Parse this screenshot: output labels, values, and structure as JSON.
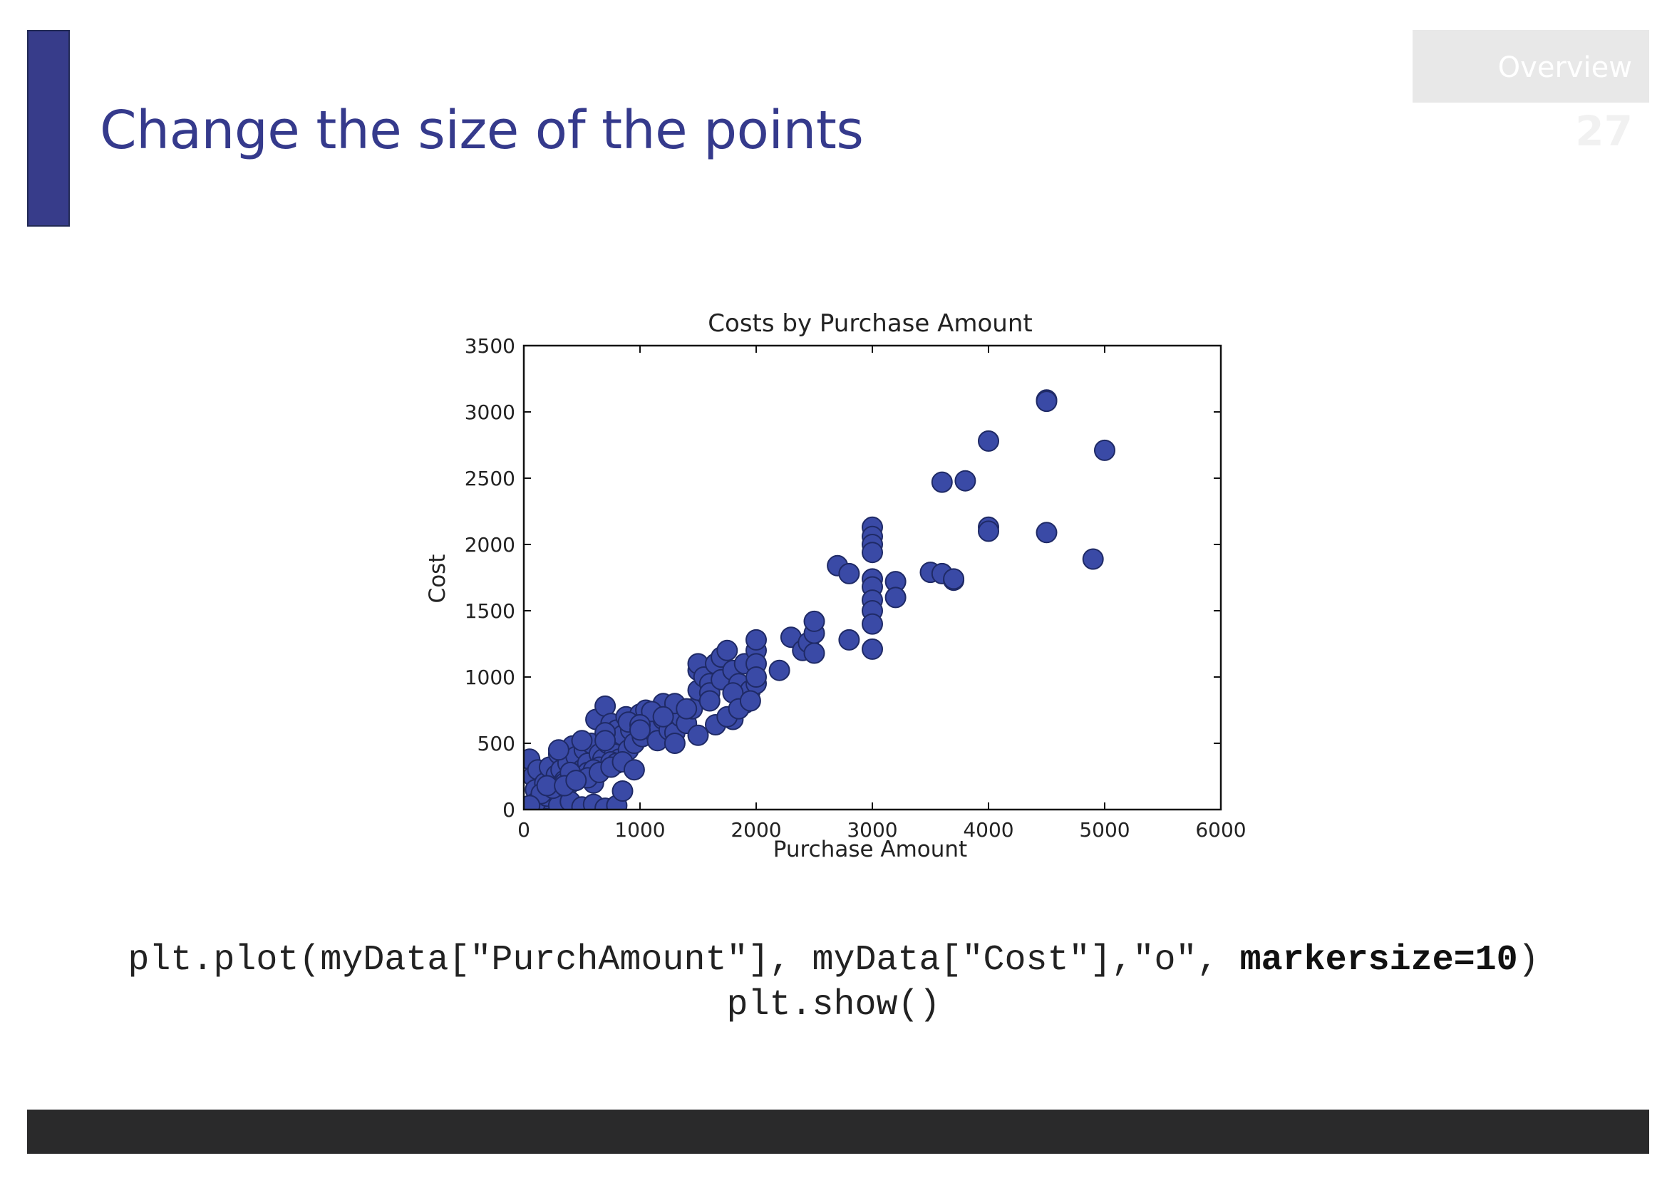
{
  "slide": {
    "title": "Change the size of the points",
    "nav_label": "Overview",
    "page_number": "27",
    "code_line1_pre": "plt.plot(myData[\"PurchAmount\"], myData[\"Cost\"],\"o\", ",
    "code_line1_bold": "markersize=10",
    "code_line1_post": ")",
    "code_line2": "plt.show()",
    "accent_color": "#373c8a",
    "marker_color": "#3a4aa6"
  },
  "chart_data": {
    "type": "scatter",
    "title": "Costs by Purchase Amount",
    "xlabel": "Purchase Amount",
    "ylabel": "Cost",
    "xlim": [
      0,
      6000
    ],
    "ylim": [
      0,
      3500
    ],
    "xticks": [
      "0",
      "1000",
      "2000",
      "3000",
      "4000",
      "5000",
      "6000"
    ],
    "yticks": [
      "0",
      "500",
      "1000",
      "1500",
      "2000",
      "2500",
      "3000",
      "3500"
    ],
    "xtick_values": [
      0,
      1000,
      2000,
      3000,
      4000,
      5000,
      6000
    ],
    "ytick_values": [
      0,
      500,
      1000,
      1500,
      2000,
      2500,
      3000,
      3500
    ],
    "grid": false,
    "x": [
      50,
      80,
      100,
      120,
      150,
      180,
      200,
      220,
      250,
      280,
      300,
      320,
      350,
      380,
      400,
      420,
      450,
      480,
      500,
      520,
      550,
      580,
      600,
      620,
      650,
      680,
      700,
      720,
      750,
      780,
      800,
      820,
      850,
      880,
      900,
      920,
      950,
      980,
      1000,
      1020,
      1050,
      1100,
      1150,
      1200,
      1200,
      1250,
      1300,
      1350,
      1400,
      1450,
      1500,
      1500,
      1500,
      1550,
      1600,
      1600,
      1650,
      1700,
      1700,
      1750,
      1800,
      1800,
      1850,
      1900,
      1900,
      1950,
      2000,
      2000,
      2000,
      2000,
      2000,
      2200,
      2300,
      2400,
      2450,
      2500,
      2500,
      2500,
      2700,
      2800,
      2800,
      3000,
      3000,
      3000,
      3000,
      3000,
      3000,
      3000,
      3000,
      3000,
      3000,
      3200,
      3200,
      3500,
      3600,
      3600,
      3700,
      3700,
      3800,
      4000,
      4000,
      4000,
      4500,
      4500,
      4500,
      4900,
      5000,
      100,
      200,
      300,
      400,
      500,
      600,
      700,
      800,
      150,
      250,
      350,
      450,
      550,
      650,
      750,
      850,
      300,
      500,
      700,
      900,
      1100,
      1300,
      1000,
      1200,
      1400,
      1600,
      1800,
      600,
      800,
      400,
      200,
      50,
      700,
      1000,
      1300,
      1500,
      1650,
      1750,
      1850,
      1950,
      550,
      650,
      750,
      850,
      950,
      350,
      450
    ],
    "y": [
      380,
      250,
      150,
      300,
      100,
      200,
      80,
      320,
      180,
      260,
      420,
      300,
      220,
      350,
      200,
      480,
      400,
      250,
      300,
      450,
      350,
      500,
      200,
      680,
      420,
      380,
      780,
      500,
      650,
      420,
      600,
      380,
      560,
      700,
      450,
      600,
      500,
      650,
      720,
      550,
      750,
      600,
      520,
      680,
      800,
      600,
      580,
      700,
      650,
      760,
      1050,
      1100,
      900,
      1000,
      950,
      880,
      1100,
      1150,
      980,
      1200,
      1050,
      680,
      950,
      1100,
      800,
      900,
      1200,
      1100,
      950,
      1000,
      1280,
      1050,
      1300,
      1200,
      1260,
      1330,
      1420,
      1180,
      1840,
      1780,
      1280,
      2130,
      2060,
      2000,
      1940,
      1740,
      1680,
      1580,
      1500,
      1400,
      1210,
      1720,
      1600,
      1790,
      1780,
      2470,
      1730,
      1740,
      2480,
      2780,
      2130,
      2100,
      3090,
      3080,
      2090,
      1890,
      2710,
      50,
      100,
      30,
      60,
      20,
      40,
      10,
      30,
      120,
      160,
      200,
      240,
      280,
      320,
      360,
      140,
      450,
      520,
      580,
      660,
      740,
      800,
      640,
      700,
      760,
      820,
      880,
      300,
      350,
      280,
      180,
      30,
      520,
      600,
      500,
      560,
      640,
      700,
      760,
      820,
      240,
      280,
      320,
      360,
      300,
      180,
      220
    ]
  }
}
